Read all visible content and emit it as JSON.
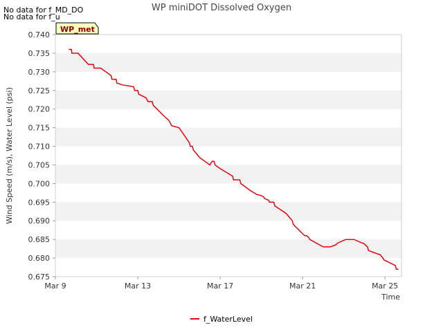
{
  "messages": [
    "No data for f_MD_DO",
    "No data for f_u"
  ],
  "site_tag": "WP_met",
  "chart_data": {
    "type": "line",
    "title": "WP miniDOT Dissolved Oxygen",
    "xlabel": "Time",
    "ylabel": "Wind Speed (m/s), Water Level (psi)",
    "xlim": [
      0,
      16.8
    ],
    "ylim": [
      0.675,
      0.74
    ],
    "x_ticks": [
      {
        "value": 0,
        "label": "Mar 9"
      },
      {
        "value": 4,
        "label": "Mar 13"
      },
      {
        "value": 8,
        "label": "Mar 17"
      },
      {
        "value": 12,
        "label": "Mar 21"
      },
      {
        "value": 16,
        "label": "Mar 25"
      }
    ],
    "y_ticks": [
      0.675,
      0.68,
      0.685,
      0.69,
      0.695,
      0.7,
      0.705,
      0.71,
      0.715,
      0.72,
      0.725,
      0.73,
      0.735,
      0.74
    ],
    "grid": "alternating horizontal bands",
    "legend_position": "bottom-center",
    "series": [
      {
        "name": "f_WaterLevel",
        "color": "#e8000b",
        "x": [
          0.65,
          0.78,
          0.8,
          1.1,
          1.6,
          1.85,
          1.88,
          2.2,
          2.7,
          2.75,
          2.95,
          2.98,
          3.25,
          3.8,
          3.85,
          4.0,
          4.05,
          4.4,
          4.5,
          4.7,
          4.75,
          5.3,
          5.5,
          5.55,
          5.6,
          5.65,
          6.0,
          6.5,
          6.55,
          6.65,
          6.7,
          6.78,
          7.0,
          7.5,
          7.55,
          7.62,
          7.7,
          7.75,
          8.0,
          8.6,
          8.65,
          8.95,
          9.0,
          9.5,
          9.8,
          9.85,
          10.1,
          10.15,
          10.35,
          10.4,
          10.6,
          10.65,
          11.2,
          11.5,
          11.55,
          12.1,
          12.2,
          12.3,
          12.35,
          13.0,
          13.3,
          13.35,
          13.6,
          13.7,
          14.1,
          14.5,
          14.9,
          14.95,
          15.15,
          15.2,
          15.7,
          15.75,
          15.9,
          15.95,
          16.5,
          16.55,
          16.65
        ],
        "y": [
          0.736,
          0.736,
          0.735,
          0.735,
          0.732,
          0.732,
          0.731,
          0.731,
          0.729,
          0.728,
          0.728,
          0.727,
          0.7265,
          0.726,
          0.725,
          0.725,
          0.724,
          0.723,
          0.722,
          0.722,
          0.721,
          0.718,
          0.717,
          0.7165,
          0.716,
          0.7155,
          0.715,
          0.711,
          0.71,
          0.71,
          0.709,
          0.7085,
          0.707,
          0.705,
          0.7055,
          0.706,
          0.706,
          0.705,
          0.704,
          0.702,
          0.701,
          0.701,
          0.7,
          0.698,
          0.697,
          0.697,
          0.6965,
          0.696,
          0.6955,
          0.695,
          0.695,
          0.694,
          0.692,
          0.69,
          0.689,
          0.686,
          0.686,
          0.6855,
          0.685,
          0.683,
          0.683,
          0.683,
          0.6835,
          0.684,
          0.685,
          0.685,
          0.684,
          0.684,
          0.683,
          0.682,
          0.681,
          0.681,
          0.68,
          0.6795,
          0.678,
          0.677,
          0.677
        ]
      }
    ]
  }
}
